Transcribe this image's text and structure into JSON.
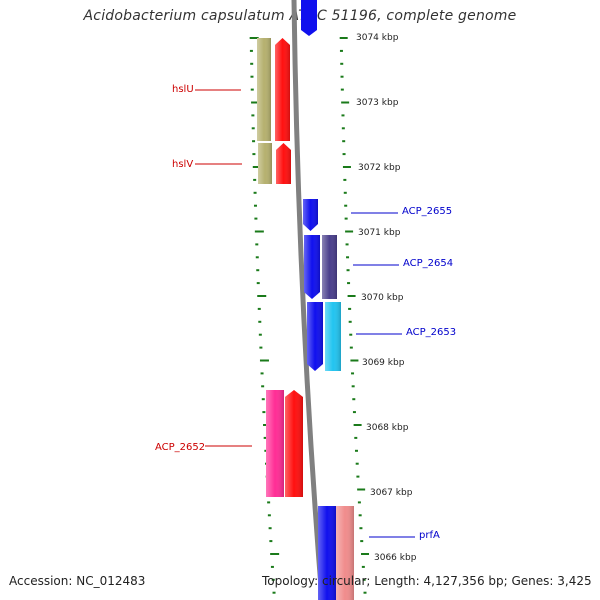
{
  "title": "Acidobacterium capsulatum ATCC 51196, complete genome",
  "footer": {
    "accession": "Accession: NC_012483",
    "topology": "Topology: circular; Length: 4,127,356 bp; Genes: 3,425"
  },
  "colors": {
    "backbone": "#808080",
    "tick": "#1a7a1a",
    "label_reverse": "#cc0000",
    "label_forward": "#0000cc"
  },
  "ticks": [
    {
      "label": "3074 kbp"
    },
    {
      "label": "3073 kbp"
    },
    {
      "label": "3072 kbp"
    },
    {
      "label": "3071 kbp"
    },
    {
      "label": "3070 kbp"
    },
    {
      "label": "3069 kbp"
    },
    {
      "label": "3068 kbp"
    },
    {
      "label": "3067 kbp"
    },
    {
      "label": "3066 kbp"
    }
  ],
  "genes": [
    {
      "label": "hslU",
      "strand": "reverse",
      "colors": [
        "#b5b06e",
        "#ff1010"
      ]
    },
    {
      "label": "hslV",
      "strand": "reverse",
      "colors": [
        "#b5b06e",
        "#ff1010"
      ]
    },
    {
      "label": "ACP_2655",
      "strand": "forward",
      "colors": [
        "#1010ee"
      ]
    },
    {
      "label": "ACP_2654",
      "strand": "forward",
      "colors": [
        "#1010ee",
        "#4a3f8c"
      ]
    },
    {
      "label": "ACP_2653",
      "strand": "forward",
      "colors": [
        "#1010ee",
        "#22c4f0"
      ]
    },
    {
      "label": "ACP_2652",
      "strand": "reverse",
      "colors": [
        "#ff2d95",
        "#ff1010"
      ]
    },
    {
      "label": "prfA",
      "strand": "forward",
      "colors": [
        "#1010ee",
        "#f08c8c"
      ]
    }
  ]
}
